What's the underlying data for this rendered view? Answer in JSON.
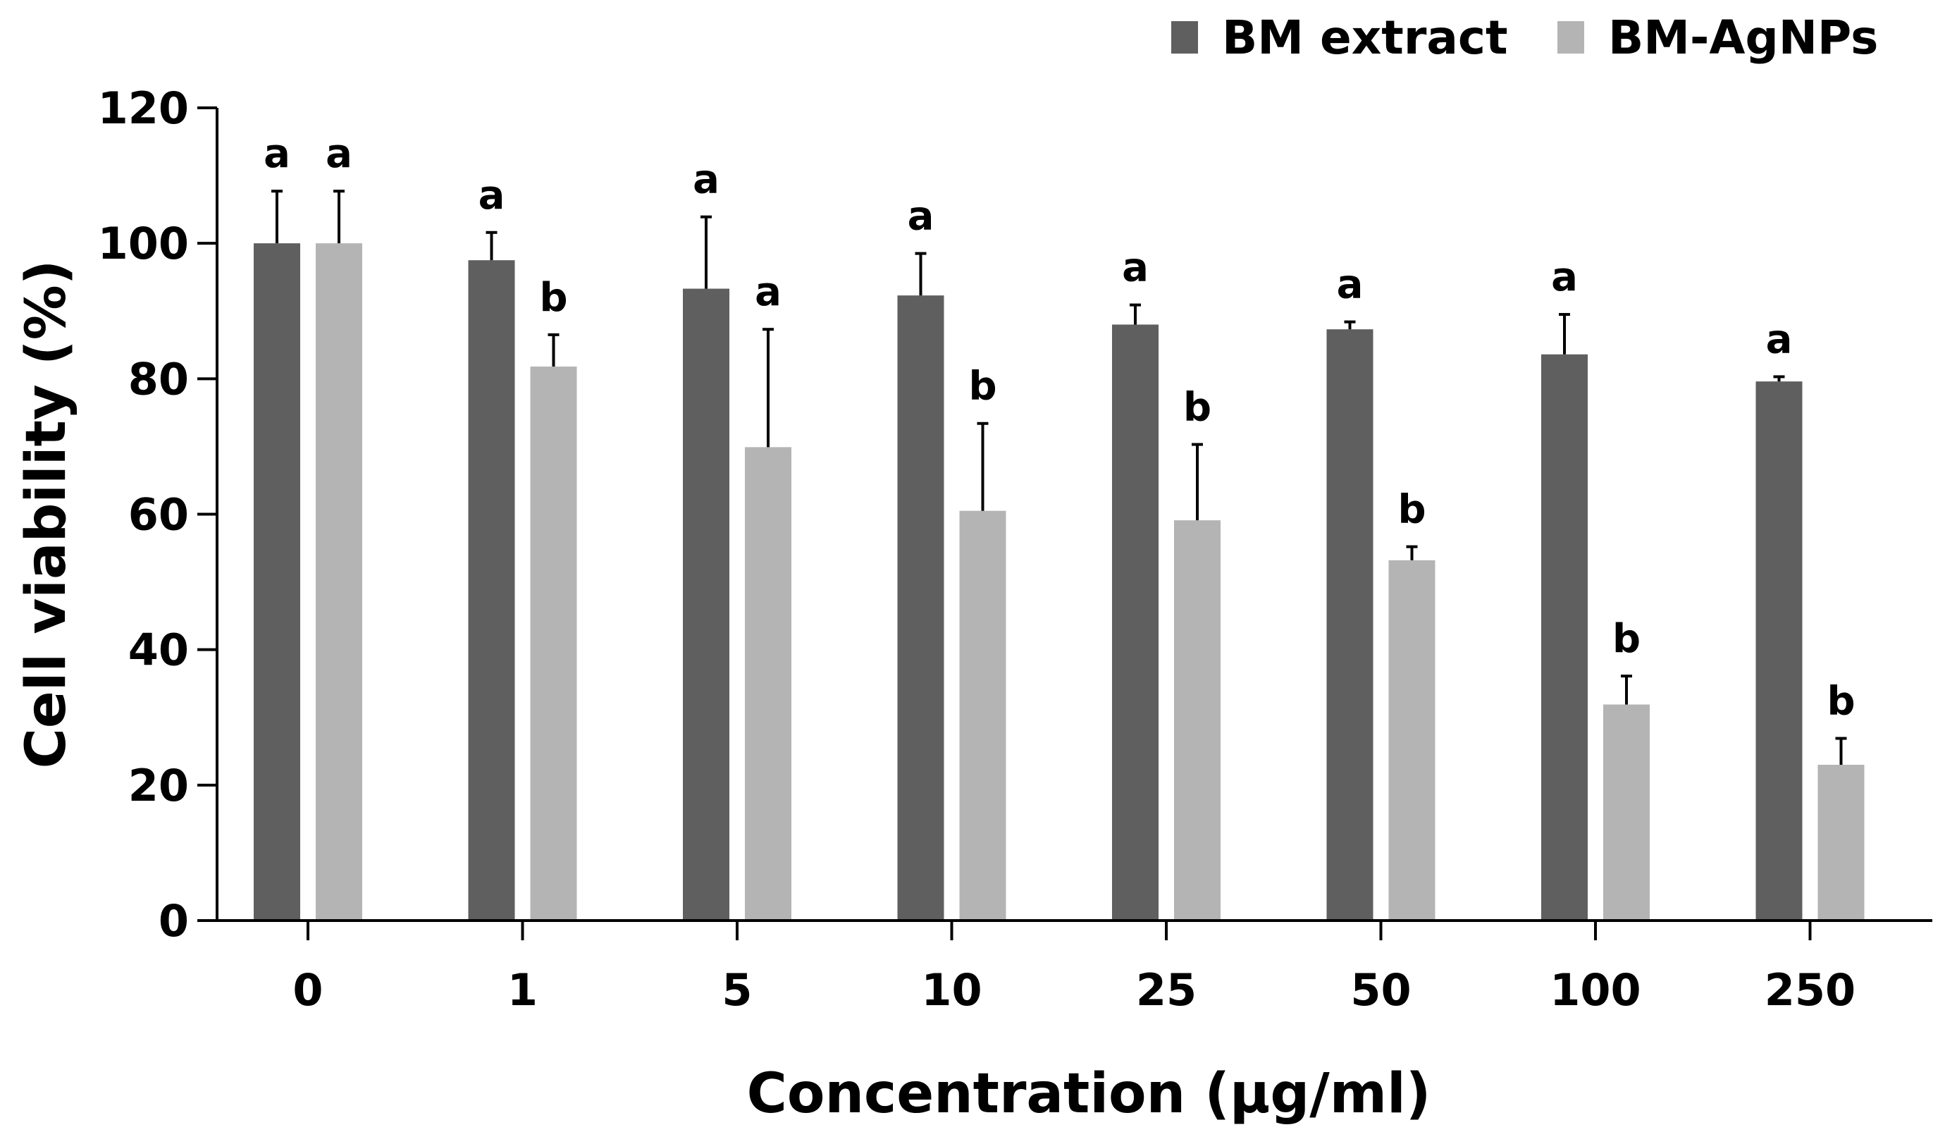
{
  "chart_data": {
    "type": "bar",
    "title": "",
    "xlabel": "Concentration (μg/ml)",
    "ylabel": "Cell viability (%)",
    "ylim": [
      0,
      120
    ],
    "yticks": [
      0,
      20,
      40,
      60,
      80,
      100,
      120
    ],
    "categories": [
      "0",
      "1",
      "5",
      "10",
      "25",
      "50",
      "100",
      "250"
    ],
    "legend_position": "top-right",
    "series": [
      {
        "name": "BM extract",
        "color": "#5f5f5f",
        "values": [
          100,
          97.5,
          93.3,
          92.3,
          88.0,
          87.3,
          83.6,
          79.6
        ],
        "errors": [
          7.7,
          4.1,
          10.6,
          6.2,
          2.9,
          1.1,
          5.9,
          0.7
        ],
        "significance": [
          "a",
          "a",
          "a",
          "a",
          "a",
          "a",
          "a",
          "a"
        ]
      },
      {
        "name": "BM-AgNPs",
        "color": "#b4b4b4",
        "values": [
          100,
          81.8,
          69.9,
          60.5,
          59.1,
          53.2,
          31.9,
          23.0
        ],
        "errors": [
          7.7,
          4.7,
          17.4,
          12.9,
          11.2,
          2.0,
          4.2,
          3.9
        ],
        "significance": [
          "a",
          "b",
          "a",
          "b",
          "b",
          "b",
          "b",
          "b"
        ]
      }
    ]
  }
}
